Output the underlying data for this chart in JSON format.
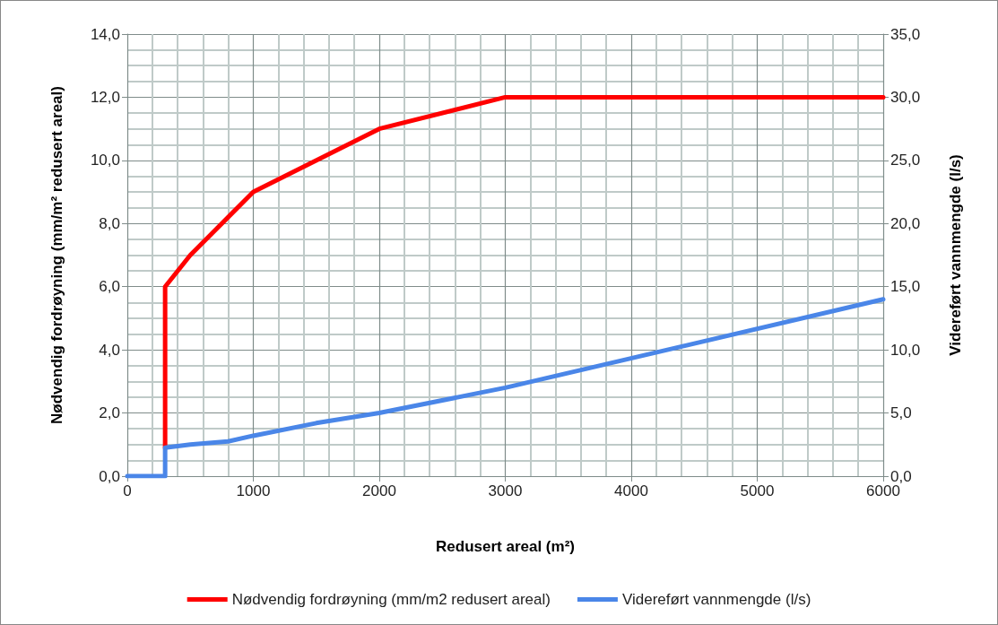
{
  "chart_data": {
    "type": "line",
    "xlabel": "Redusert areal (m²)",
    "ylabel": "Nødvendig fordrøyning (mm/m² redusert areal)",
    "y2label": "Videreført vannmengde (l/s)",
    "xlim": [
      0,
      6000
    ],
    "xticks": [
      0,
      1000,
      2000,
      3000,
      4000,
      5000,
      6000
    ],
    "ylim": [
      0,
      14
    ],
    "yticks": [
      {
        "value": 0,
        "label": "0,0"
      },
      {
        "value": 2,
        "label": "2,0"
      },
      {
        "value": 4,
        "label": "4,0"
      },
      {
        "value": 6,
        "label": "6,0"
      },
      {
        "value": 8,
        "label": "8,0"
      },
      {
        "value": 10,
        "label": "10,0"
      },
      {
        "value": 12,
        "label": "12,0"
      },
      {
        "value": 14,
        "label": "14,0"
      }
    ],
    "y2lim": [
      0,
      35
    ],
    "y2ticks": [
      {
        "value": 0,
        "label": "0,0"
      },
      {
        "value": 5,
        "label": "5,0"
      },
      {
        "value": 10,
        "label": "10,0"
      },
      {
        "value": 15,
        "label": "15,0"
      },
      {
        "value": 20,
        "label": "20,0"
      },
      {
        "value": 25,
        "label": "25,0"
      },
      {
        "value": 30,
        "label": "30,0"
      },
      {
        "value": 35,
        "label": "35,0"
      }
    ],
    "grid": true,
    "legend": "bottom",
    "marker": "none",
    "line_style": "solid",
    "series": [
      {
        "name": "Nødvendig fordrøyning (mm/m2 redusert areal)",
        "color": "#ff0000",
        "x": [
          300,
          300,
          500,
          1000,
          2000,
          3000,
          6000
        ],
        "values": [
          0.9,
          6.0,
          7.0,
          9.0,
          11.0,
          12.0,
          12.0
        ]
      },
      {
        "name": "Videreført vannmengde (l/s)",
        "color": "#4a86e8",
        "axis": "y2",
        "x": [
          0,
          300,
          300,
          500,
          800,
          1000,
          1500,
          2000,
          3000,
          6000
        ],
        "values": [
          0,
          0,
          2.25,
          2.5,
          2.75,
          3.2,
          4.2,
          5.0,
          7.0,
          14.0
        ]
      }
    ]
  }
}
